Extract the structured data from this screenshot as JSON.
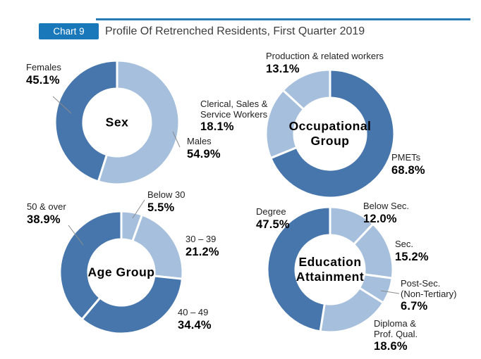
{
  "header": {
    "badge": "Chart 9",
    "title": "Profile Of Retrenched Residents, First Quarter 2019"
  },
  "colors": {
    "dark": "#4776ad",
    "light": "#a5bfdd",
    "badge_bg": "#1878ba",
    "rule": "#2a7ab8",
    "leader_line": "#8c8c8c"
  },
  "chart_data": [
    {
      "type": "pie",
      "subtype": "donut",
      "title": "Sex",
      "unit": "%",
      "start_angle": 0,
      "direction": "clockwise",
      "segments": [
        {
          "label": "Males",
          "value": 54.9,
          "tone": "light"
        },
        {
          "label": "Females",
          "value": 45.1,
          "tone": "dark"
        }
      ]
    },
    {
      "type": "pie",
      "subtype": "donut",
      "title": "Occupational\nGroup",
      "unit": "%",
      "start_angle": 0,
      "direction": "clockwise",
      "segments": [
        {
          "label": "PMETs",
          "value": 68.8,
          "tone": "dark"
        },
        {
          "label": "Clerical, Sales &\nService Workers",
          "value": 18.1,
          "tone": "light"
        },
        {
          "label": "Production & related workers",
          "value": 13.1,
          "tone": "light"
        }
      ]
    },
    {
      "type": "pie",
      "subtype": "donut",
      "title": "Age Group",
      "unit": "%",
      "start_angle": 0,
      "direction": "clockwise",
      "segments": [
        {
          "label": "Below 30",
          "value": 5.5,
          "tone": "light"
        },
        {
          "label": "30 – 39",
          "value": 21.2,
          "tone": "light"
        },
        {
          "label": "40 – 49",
          "value": 34.4,
          "tone": "dark"
        },
        {
          "label": "50 & over",
          "value": 38.9,
          "tone": "dark"
        }
      ]
    },
    {
      "type": "pie",
      "subtype": "donut",
      "title": "Education\nAttainment",
      "unit": "%",
      "start_angle": 0,
      "direction": "clockwise",
      "segments": [
        {
          "label": "Below Sec.",
          "value": 12.0,
          "tone": "light"
        },
        {
          "label": "Sec.",
          "value": 15.2,
          "tone": "light"
        },
        {
          "label": "Post-Sec.\n(Non-Tertiary)",
          "value": 6.7,
          "tone": "light"
        },
        {
          "label": "Diploma &\nProf. Qual.",
          "value": 18.6,
          "tone": "light"
        },
        {
          "label": "Degree",
          "value": 47.5,
          "tone": "dark"
        }
      ]
    }
  ]
}
